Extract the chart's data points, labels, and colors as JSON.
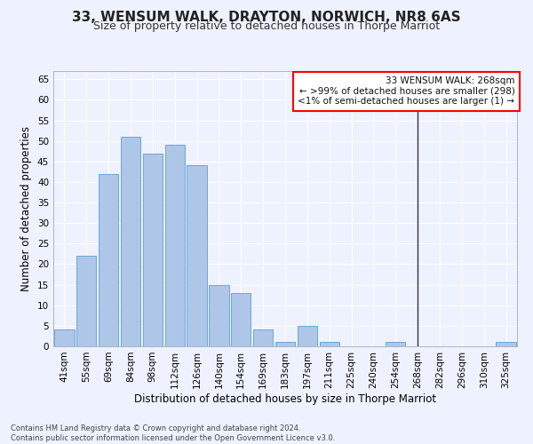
{
  "title": "33, WENSUM WALK, DRAYTON, NORWICH, NR8 6AS",
  "subtitle": "Size of property relative to detached houses in Thorpe Marriot",
  "xlabel": "Distribution of detached houses by size in Thorpe Marriot",
  "ylabel": "Number of detached properties",
  "footnote": "Contains HM Land Registry data © Crown copyright and database right 2024.\nContains public sector information licensed under the Open Government Licence v3.0.",
  "bar_labels": [
    "41sqm",
    "55sqm",
    "69sqm",
    "84sqm",
    "98sqm",
    "112sqm",
    "126sqm",
    "140sqm",
    "154sqm",
    "169sqm",
    "183sqm",
    "197sqm",
    "211sqm",
    "225sqm",
    "240sqm",
    "254sqm",
    "268sqm",
    "282sqm",
    "296sqm",
    "310sqm",
    "325sqm"
  ],
  "bar_values": [
    4,
    22,
    42,
    51,
    47,
    49,
    44,
    15,
    13,
    4,
    1,
    5,
    1,
    0,
    0,
    1,
    0,
    0,
    0,
    0,
    1
  ],
  "bar_color": "#aec6e8",
  "bar_edge_color": "#5a9fd4",
  "highlight_index": 16,
  "highlight_line_color": "#333333",
  "ylim": [
    0,
    67
  ],
  "yticks": [
    0,
    5,
    10,
    15,
    20,
    25,
    30,
    35,
    40,
    45,
    50,
    55,
    60,
    65
  ],
  "annotation_box_text": "33 WENSUM WALK: 268sqm\n← >99% of detached houses are smaller (298)\n<1% of semi-detached houses are larger (1) →",
  "background_color": "#eef2ff",
  "grid_color": "#ffffff",
  "title_fontsize": 11,
  "subtitle_fontsize": 9,
  "axis_label_fontsize": 8.5,
  "tick_fontsize": 7.5,
  "annotation_fontsize": 7.5,
  "footnote_fontsize": 6.0
}
